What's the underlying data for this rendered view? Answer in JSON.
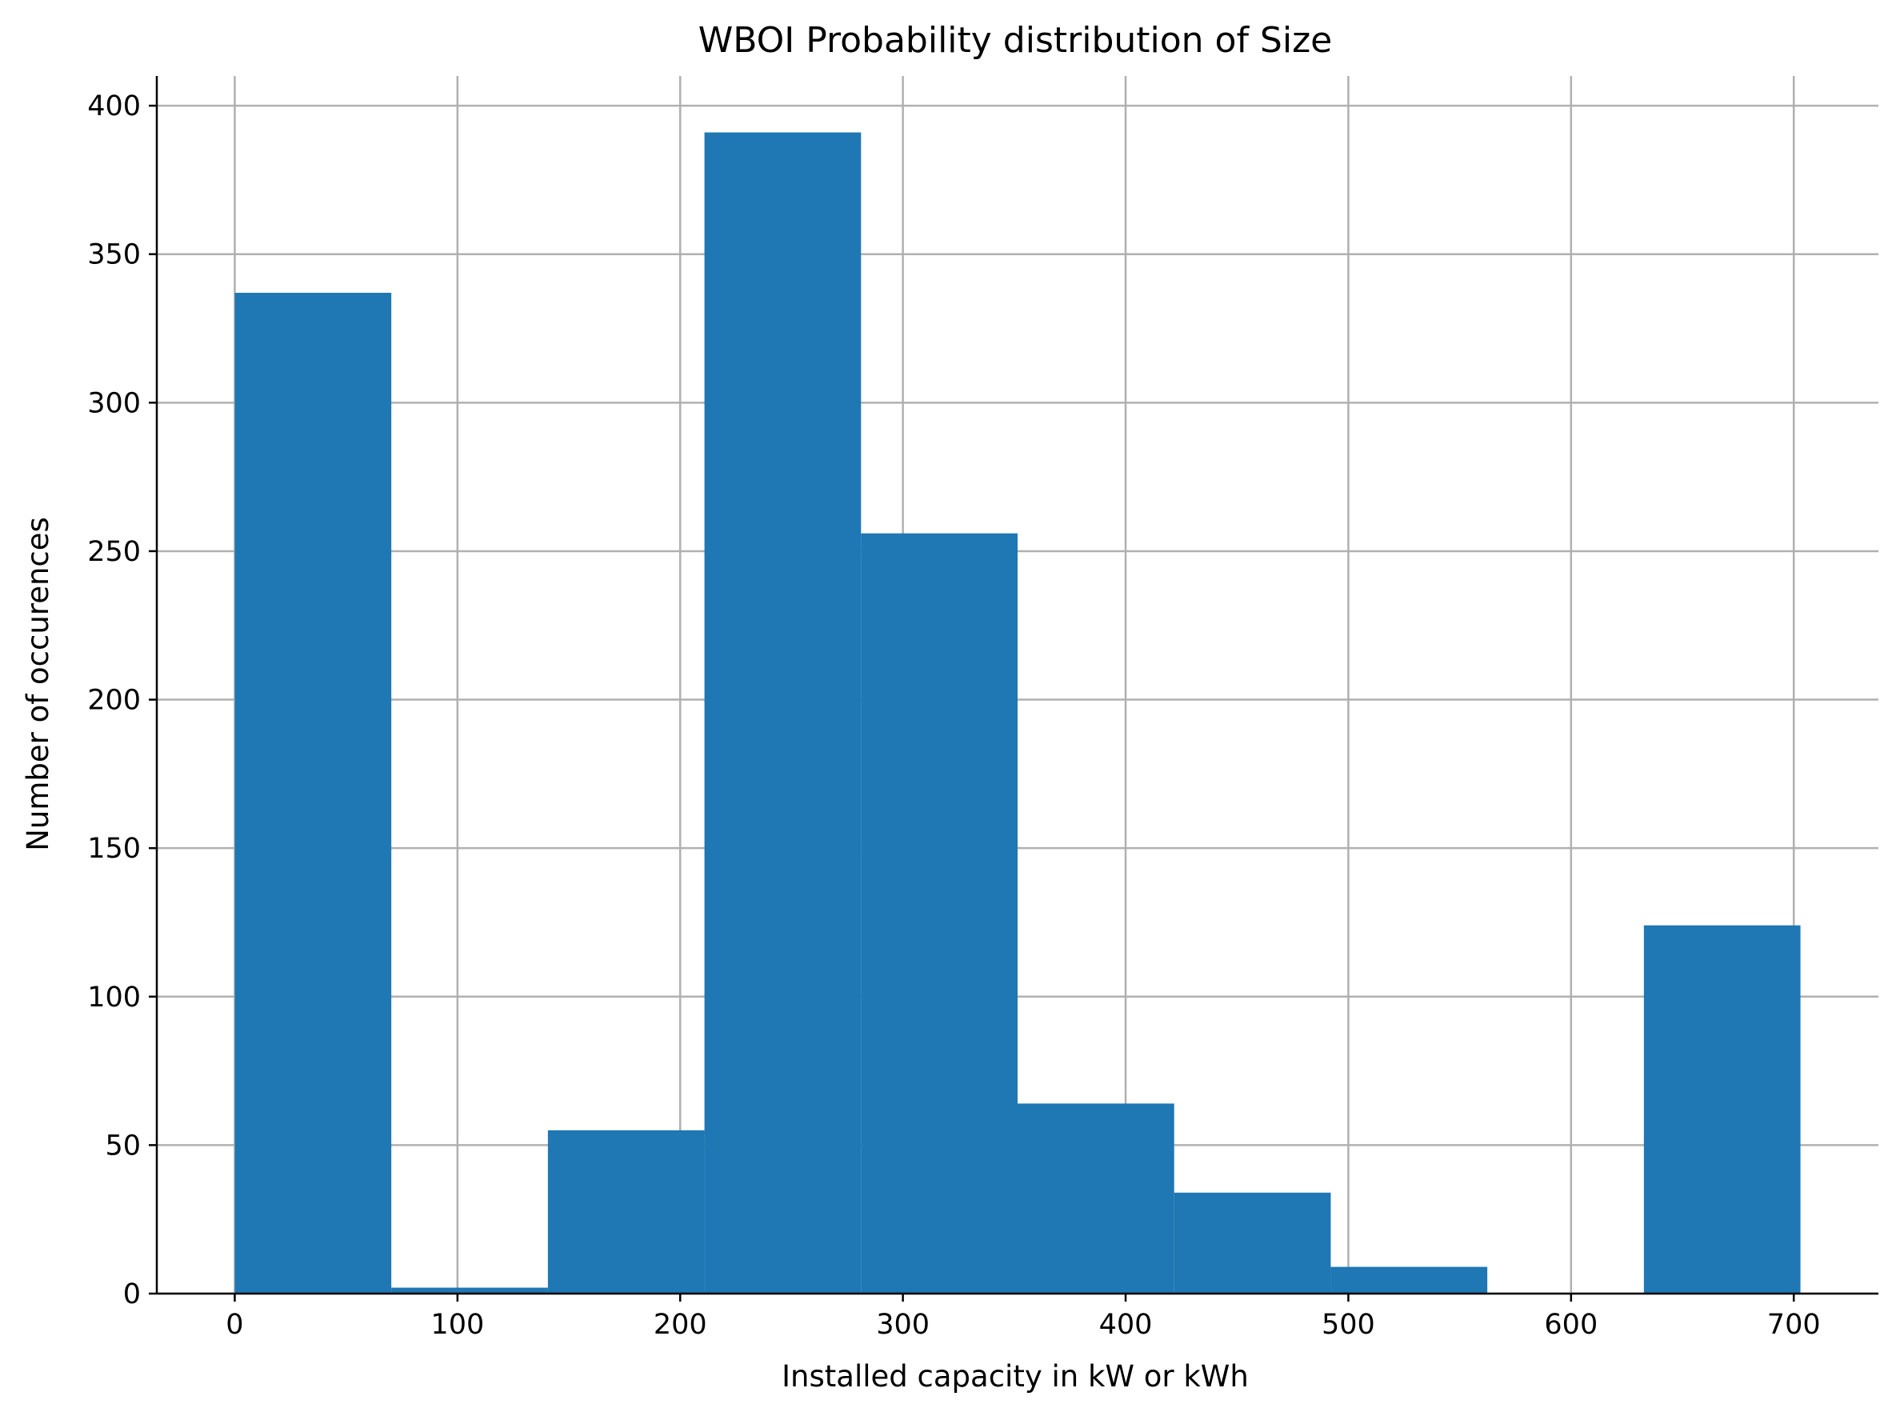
{
  "chart_data": {
    "type": "bar",
    "subtype": "histogram",
    "title": "WBOI Probability distribution of Size",
    "xlabel": "Installed capacity in kW or kWh",
    "ylabel": "Number of occurences",
    "bin_edges": [
      0,
      70.3,
      140.6,
      210.9,
      281.2,
      351.5,
      421.8,
      492.1,
      562.4,
      632.7,
      703
    ],
    "values": [
      337,
      2,
      55,
      391,
      256,
      64,
      34,
      9,
      0,
      124
    ],
    "xlim": [
      -35,
      738
    ],
    "ylim": [
      0,
      410
    ],
    "xticks": [
      0,
      100,
      200,
      300,
      400,
      500,
      600,
      700
    ],
    "yticks": [
      0,
      50,
      100,
      150,
      200,
      250,
      300,
      350,
      400
    ],
    "grid": true,
    "bar_color": "#1f77b4"
  }
}
